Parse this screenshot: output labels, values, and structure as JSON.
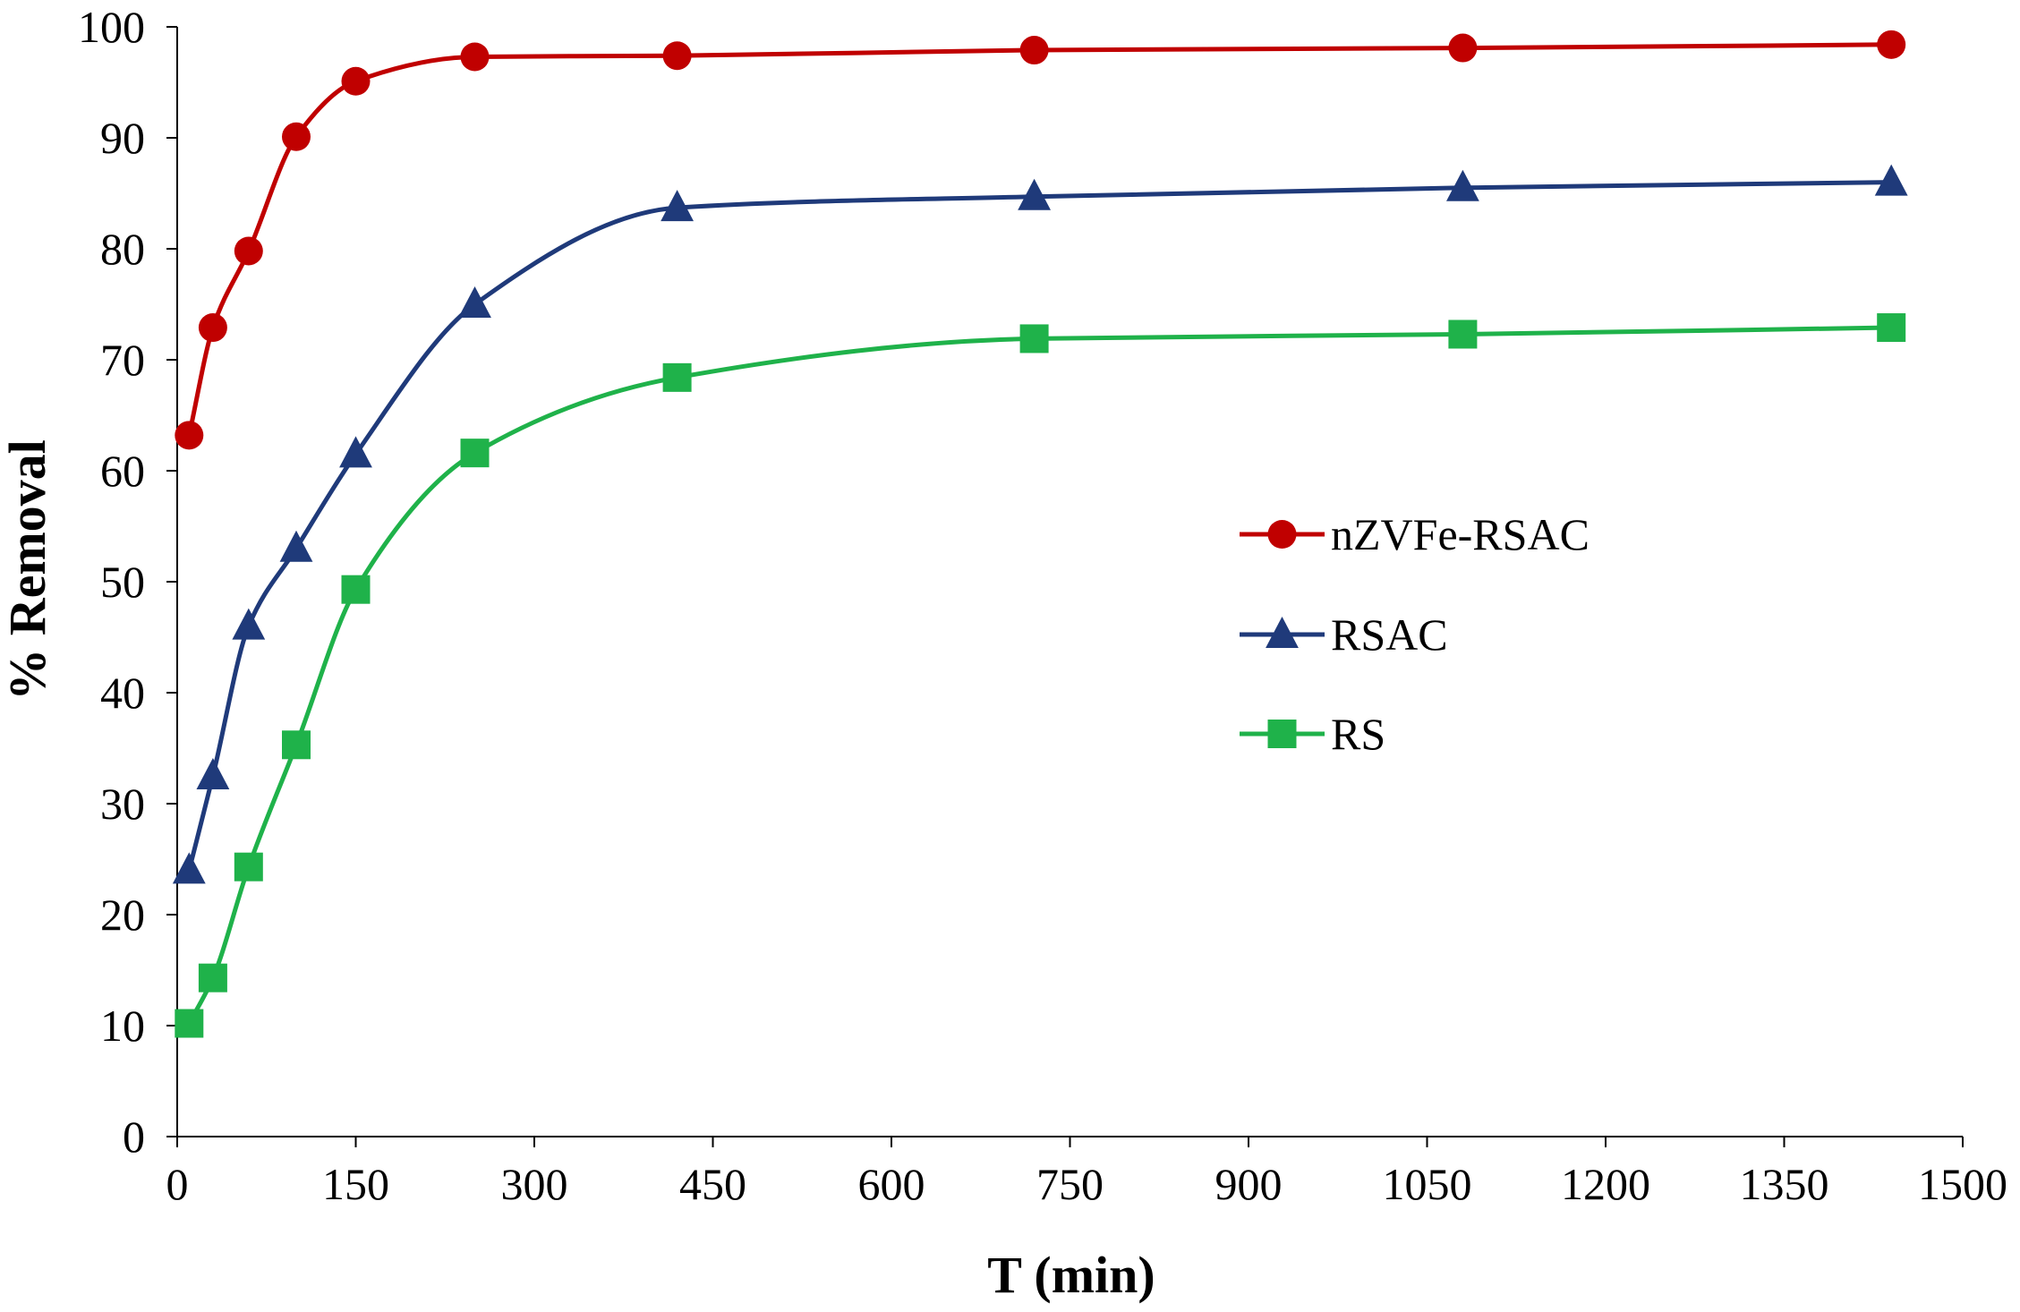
{
  "chart_data": {
    "type": "line",
    "title": "",
    "xlabel": "T (min)",
    "ylabel": "% Removal",
    "xlim": [
      0,
      1500
    ],
    "ylim": [
      0,
      100
    ],
    "x_ticks": [
      0,
      150,
      300,
      450,
      600,
      750,
      900,
      1050,
      1200,
      1350,
      1500
    ],
    "y_ticks": [
      0,
      10,
      20,
      30,
      40,
      50,
      60,
      70,
      80,
      90,
      100
    ],
    "grid": false,
    "legend_position": "right-center",
    "x": [
      10,
      30,
      60,
      100,
      150,
      250,
      420,
      720,
      1080,
      1440
    ],
    "series": [
      {
        "name": "nZVFe-RSAC",
        "marker": "circle",
        "color": "#c00000",
        "values": [
          63.2,
          72.9,
          79.8,
          90.1,
          95.1,
          97.3,
          97.4,
          97.9,
          98.1,
          98.4
        ]
      },
      {
        "name": "RSAC",
        "marker": "triangle",
        "color": "#1f3a7a",
        "values": [
          24.0,
          32.5,
          46.0,
          53.0,
          61.5,
          75.0,
          83.7,
          84.7,
          85.5,
          86.0
        ]
      },
      {
        "name": "RS",
        "marker": "square",
        "color": "#1fb24a",
        "values": [
          10.2,
          14.3,
          24.3,
          35.3,
          49.3,
          61.6,
          68.4,
          71.9,
          72.3,
          72.9
        ]
      }
    ]
  }
}
